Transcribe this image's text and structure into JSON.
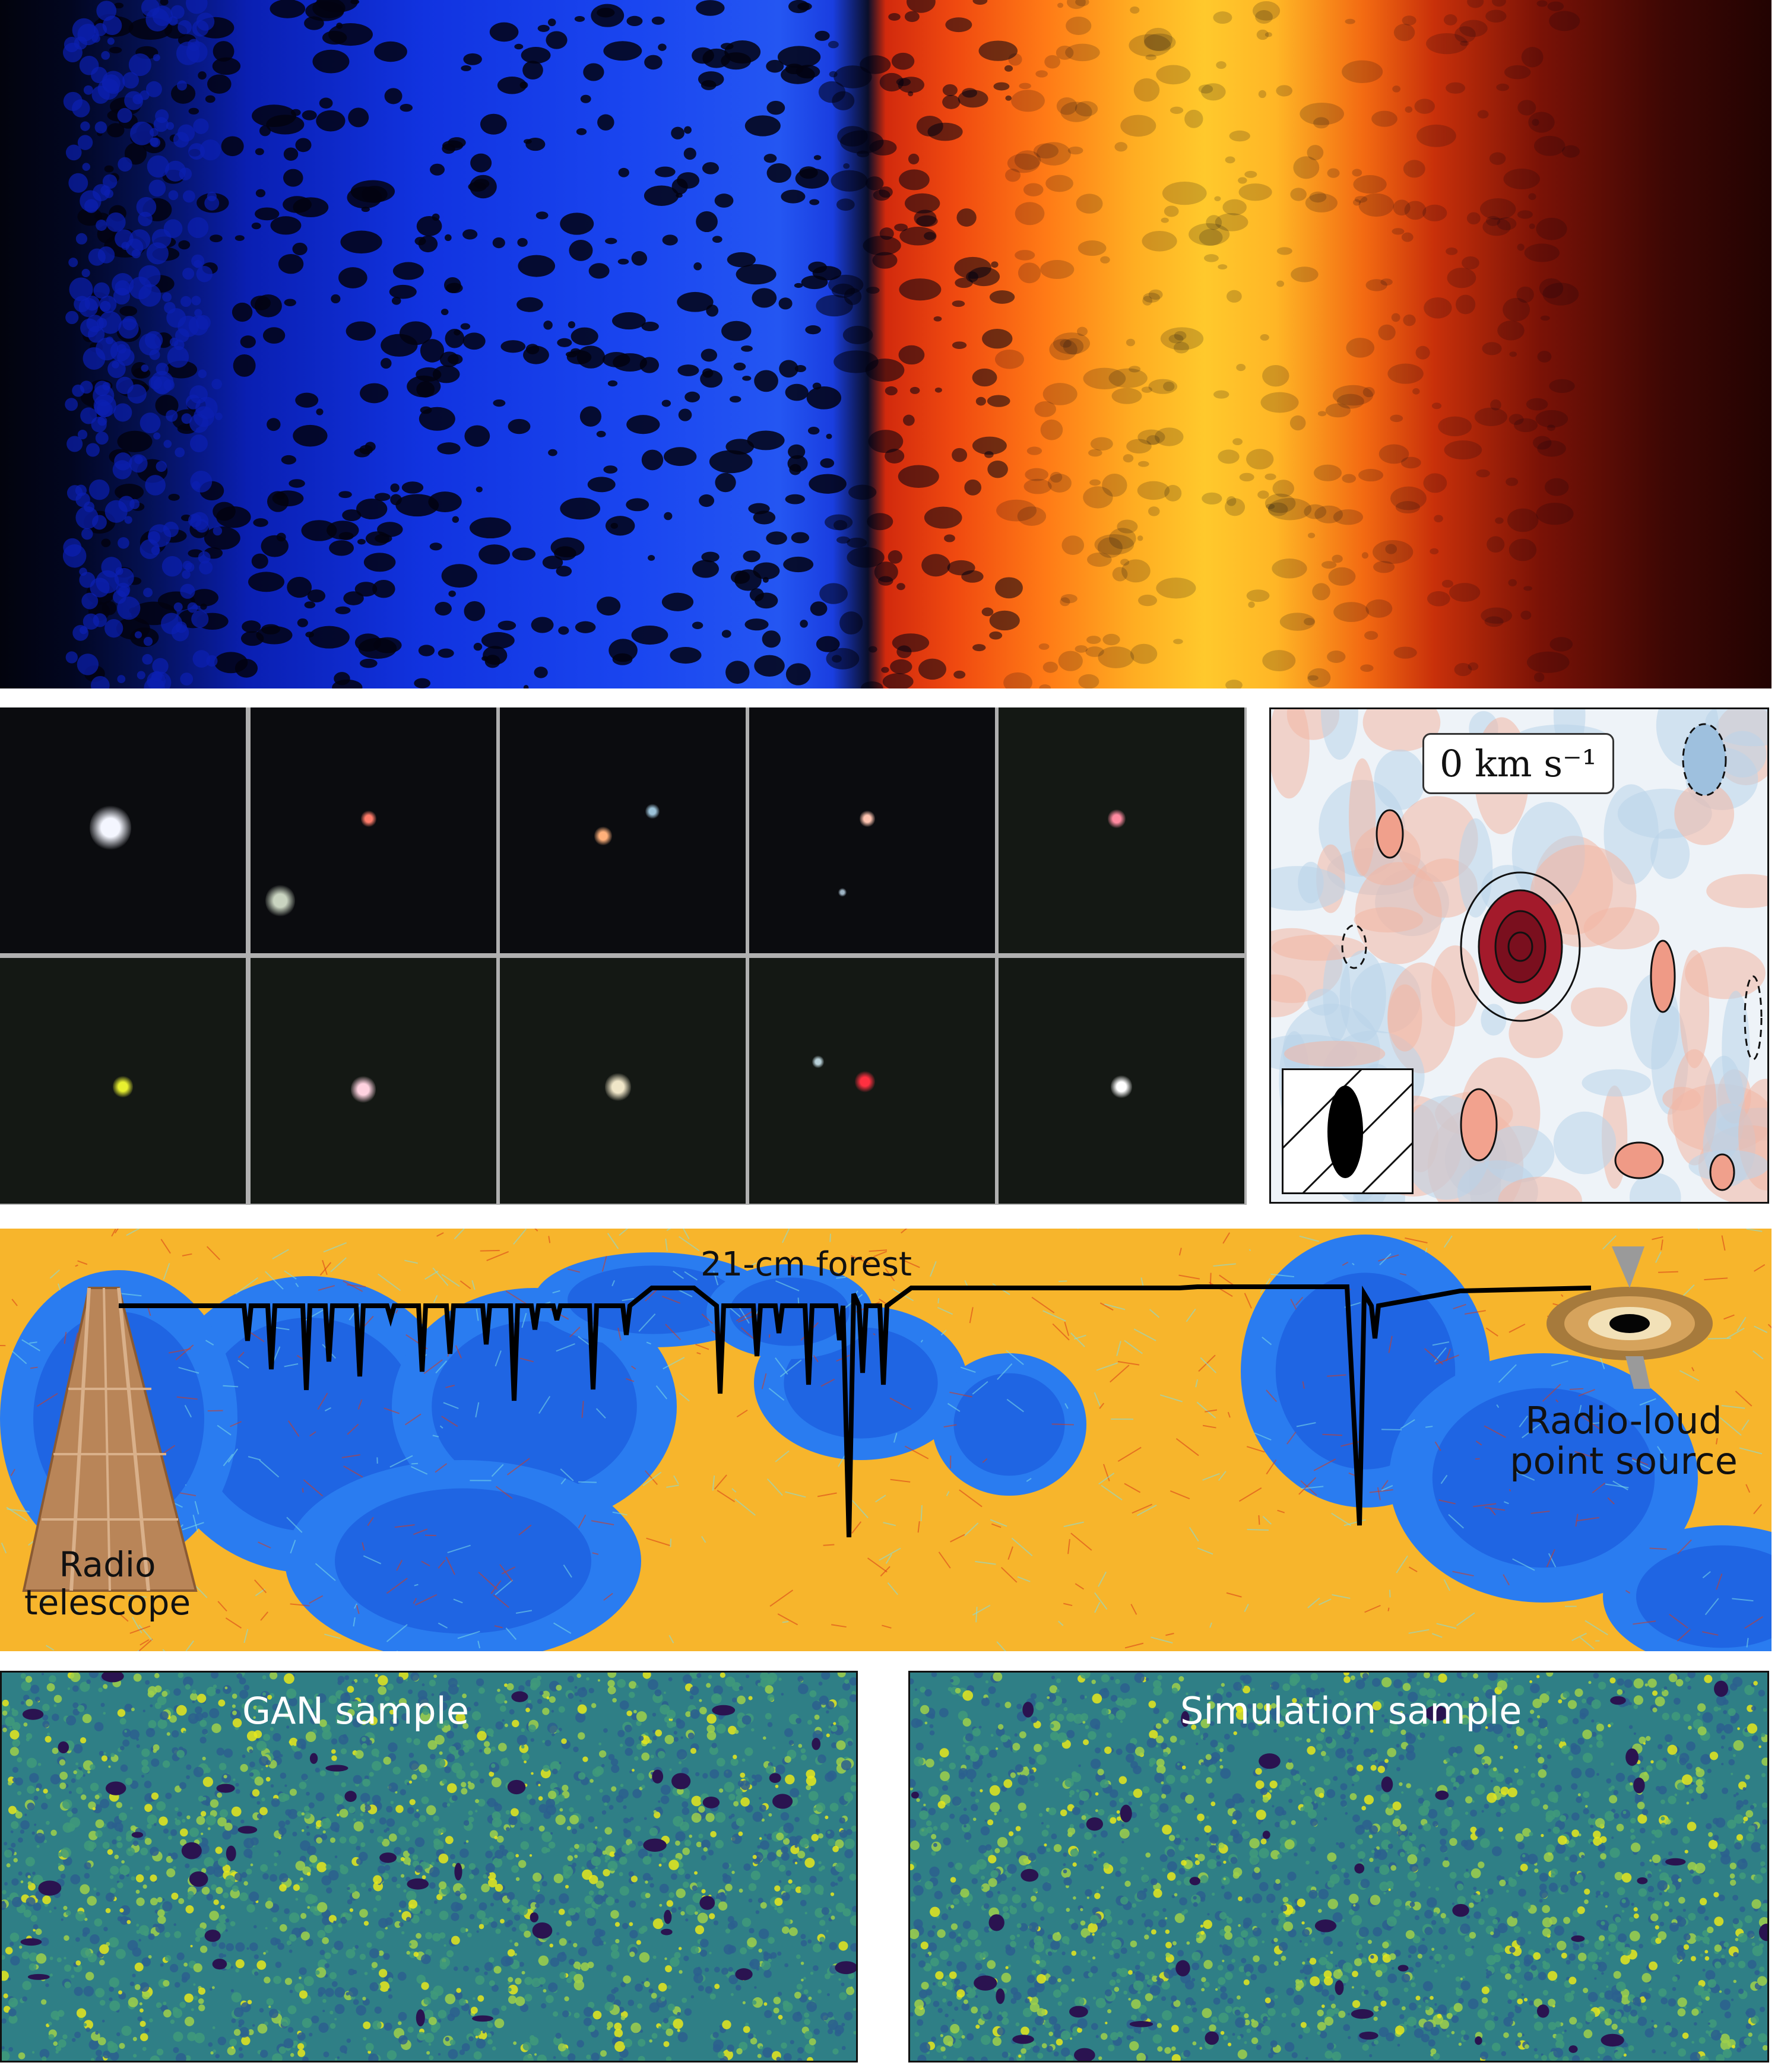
{
  "velocity_map": {
    "label": "0 km s⁻¹"
  },
  "forest_panel": {
    "title": "21-cm forest",
    "telescope_label": [
      "Radio",
      "telescope"
    ],
    "source_label": [
      "Radio-loud",
      "point source"
    ]
  },
  "gan_panel": {
    "title": "GAN sample"
  },
  "simulation_panel": {
    "title": "Simulation sample"
  },
  "colors": {
    "ionized_blue": "#1a46f0",
    "neutral_red": "#e2300c",
    "forest_orange": "#f7b52c",
    "forest_blue": "#2a7cf0",
    "sample_teal": "#2f7f86",
    "sample_yellow": "#d8e020",
    "sample_purple": "#3b2a6e"
  }
}
